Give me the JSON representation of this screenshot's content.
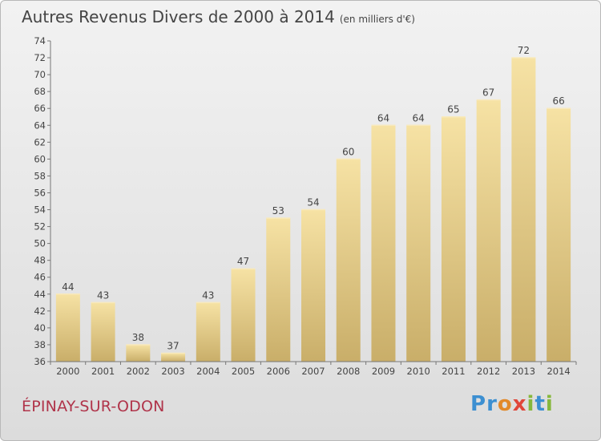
{
  "header": {
    "title": "Autres Revenus Divers de 2000 à 2014",
    "subtitle": "(en milliers d'€)"
  },
  "footer": {
    "town": "ÉPINAY-SUR-ODON",
    "logo": "Proxiti"
  },
  "colors": {
    "bar_light": "#f4dc98",
    "bar_dark": "#c6ab65",
    "axis": "#555555",
    "title": "#444444",
    "town": "#b0344a"
  },
  "chart_data": {
    "type": "bar",
    "title": "Autres Revenus Divers de 2000 à 2014",
    "subtitle": "(en milliers d'€)",
    "categories": [
      "2000",
      "2001",
      "2002",
      "2003",
      "2004",
      "2005",
      "2006",
      "2007",
      "2008",
      "2009",
      "2010",
      "2011",
      "2012",
      "2013",
      "2014"
    ],
    "values": [
      44,
      43,
      38,
      37,
      43,
      47,
      53,
      54,
      60,
      64,
      64,
      65,
      67,
      72,
      66
    ],
    "ylim": [
      36,
      74
    ],
    "yticks": [
      36,
      38,
      40,
      42,
      44,
      46,
      48,
      50,
      52,
      54,
      56,
      58,
      60,
      62,
      64,
      66,
      68,
      70,
      72,
      74
    ],
    "grid": false,
    "data_labels": true
  }
}
